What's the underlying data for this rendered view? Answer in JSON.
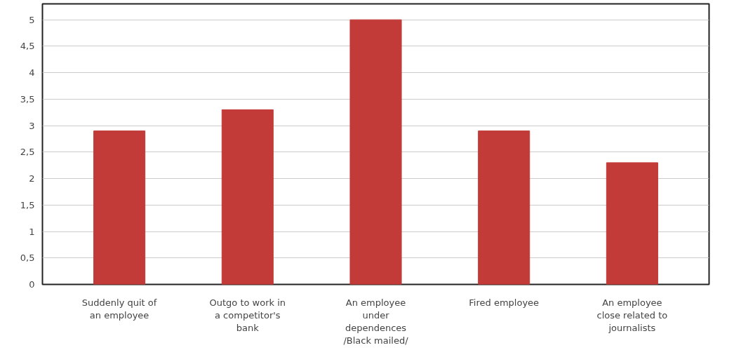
{
  "chart_data": {
    "type": "bar",
    "categories": [
      "Suddenly quit of\nan employee",
      "Outgo to work in\na competitor's\nbank",
      "An employee\nunder\ndependences\n/Black mailed/",
      "Fired employee",
      "An employee\nclose related to\njournalists"
    ],
    "values": [
      2.9,
      3.3,
      5,
      2.9,
      2.3
    ],
    "color": "#c23b38",
    "ylim": [
      0,
      5.3
    ],
    "yticks": [
      0,
      {
        "value": 0.5,
        "label": "0,5"
      },
      1,
      {
        "value": 1.5,
        "label": "1,5"
      },
      2,
      {
        "value": 2.5,
        "label": "2,5"
      },
      3,
      {
        "value": 3.5,
        "label": "3,5"
      },
      4,
      {
        "value": 4.5,
        "label": "4,5"
      },
      5
    ],
    "grid": "y"
  }
}
